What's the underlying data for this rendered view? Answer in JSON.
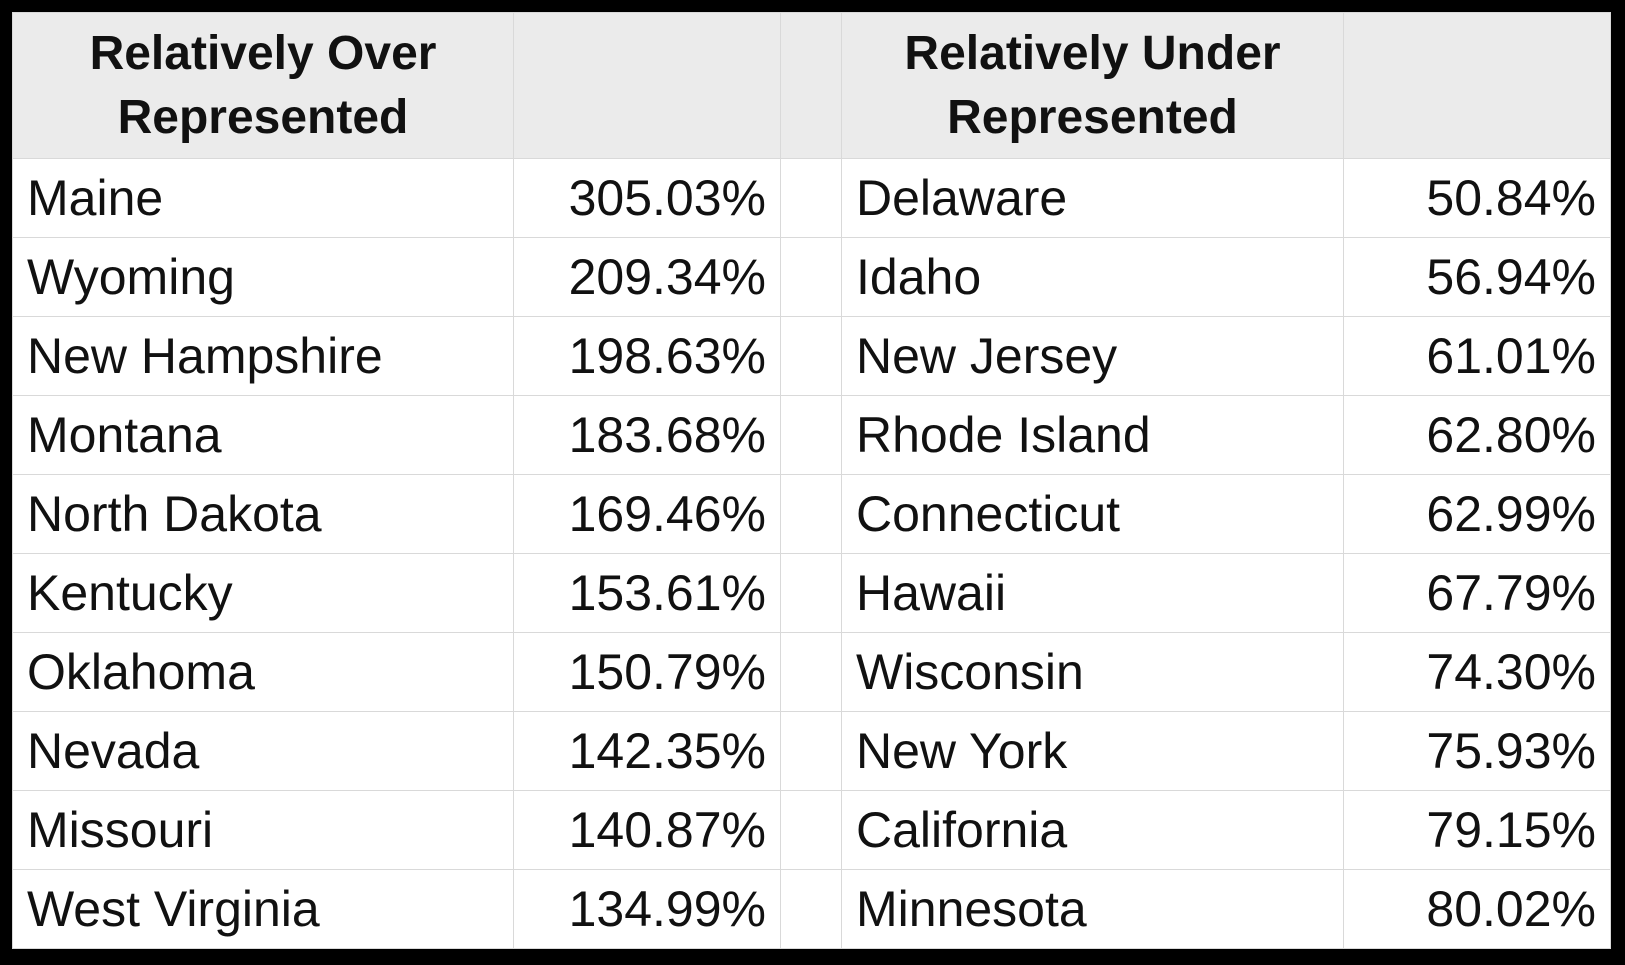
{
  "table": {
    "headers": [
      "Relatively Over Represented",
      "Relatively Under Represented"
    ],
    "rows": [
      [
        "Maine",
        "305.03%",
        "Delaware",
        "50.84%"
      ],
      [
        "Wyoming",
        "209.34%",
        "Idaho",
        "56.94%"
      ],
      [
        "New Hampshire",
        "198.63%",
        "New Jersey",
        "61.01%"
      ],
      [
        "Montana",
        "183.68%",
        "Rhode Island",
        "62.80%"
      ],
      [
        "North Dakota",
        "169.46%",
        "Connecticut",
        "62.99%"
      ],
      [
        "Kentucky",
        "153.61%",
        "Hawaii",
        "67.79%"
      ],
      [
        "Oklahoma",
        "150.79%",
        "Wisconsin",
        "74.30%"
      ],
      [
        "Nevada",
        "142.35%",
        "New York",
        "75.93%"
      ],
      [
        "Missouri",
        "140.87%",
        "California",
        "79.15%"
      ],
      [
        "West Virginia",
        "134.99%",
        "Minnesota",
        "80.02%"
      ]
    ]
  }
}
